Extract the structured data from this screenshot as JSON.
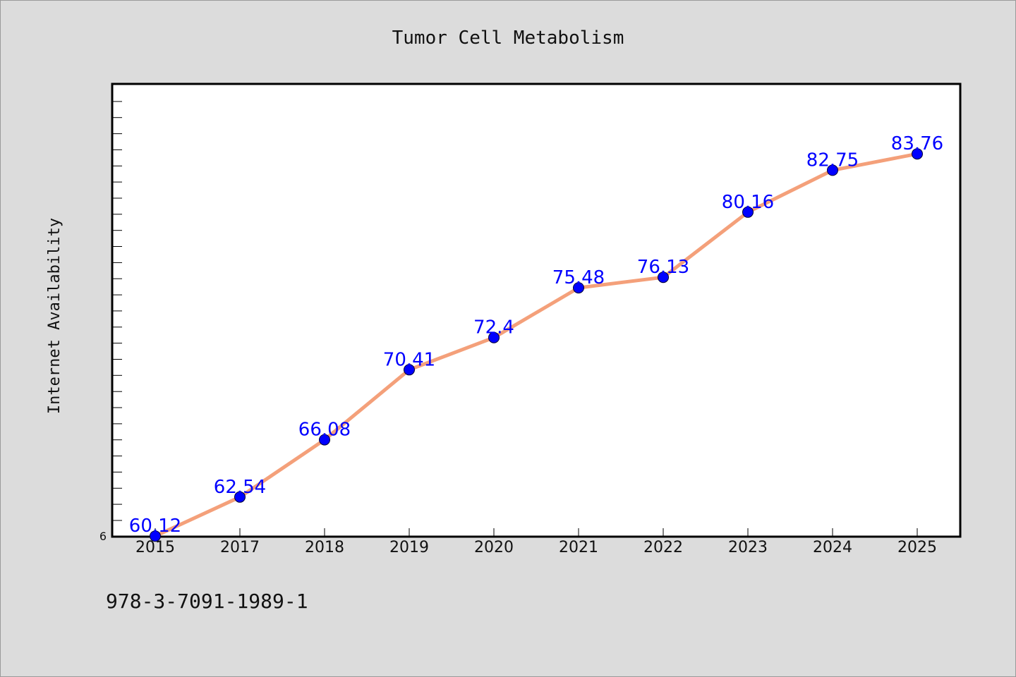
{
  "colors": {
    "background": "#dcdcdc",
    "plot_background": "#ffffff",
    "line": "#f4a07a",
    "marker": "#0000ff",
    "data_label": "#0000ff"
  },
  "footer_text": "978-3-7091-1989-1",
  "chart_data": {
    "type": "line",
    "title": "Tumor Cell Metabolism",
    "xlabel": "",
    "ylabel": "Internet Availability",
    "categories": [
      "2015",
      "2017",
      "2018",
      "2019",
      "2020",
      "2021",
      "2022",
      "2023",
      "2024",
      "2025"
    ],
    "values": [
      60.12,
      62.54,
      66.08,
      70.41,
      72.4,
      75.48,
      76.13,
      80.16,
      82.75,
      83.76
    ],
    "y_tick_labels": [
      "6"
    ],
    "ylim": [
      60,
      88
    ],
    "grid": false,
    "legend": "none",
    "marker": "circle"
  }
}
